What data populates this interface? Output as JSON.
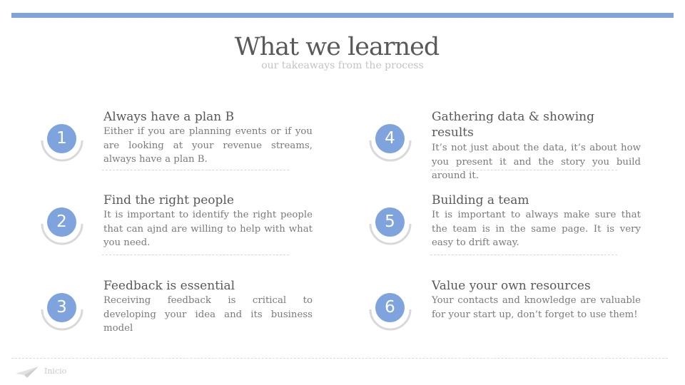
{
  "header": {
    "title": "What we learned",
    "subtitle": "our takeaways from the process"
  },
  "accent_color": "#7fa3dc",
  "items": [
    {
      "number": "1",
      "title": "Always have a plan B",
      "text": "Either if you are planning events or if you are looking at your revenue streams, always have a plan B."
    },
    {
      "number": "2",
      "title": "Find the right people",
      "text": "It is important to identify the right people that can ajnd are willing to help with what you need."
    },
    {
      "number": "3",
      "title": "Feedback is essential",
      "text": "Receiving feedback is critical to developing your idea and its business model"
    },
    {
      "number": "4",
      "title": "Gathering data & showing results",
      "text": "It’s not just about the data, it’s about how you present it and the story you build around it."
    },
    {
      "number": "5",
      "title": "Building a team",
      "text": "It is important to always make sure that the team is in the same page. It is very easy to drift away."
    },
    {
      "number": "6",
      "title": "Value your own resources",
      "text": "Your contacts and knowledge are valuable for your start up, don’t forget to use them!"
    }
  ],
  "footer": {
    "icon": "paper-plane-icon",
    "label": "Inicio"
  }
}
